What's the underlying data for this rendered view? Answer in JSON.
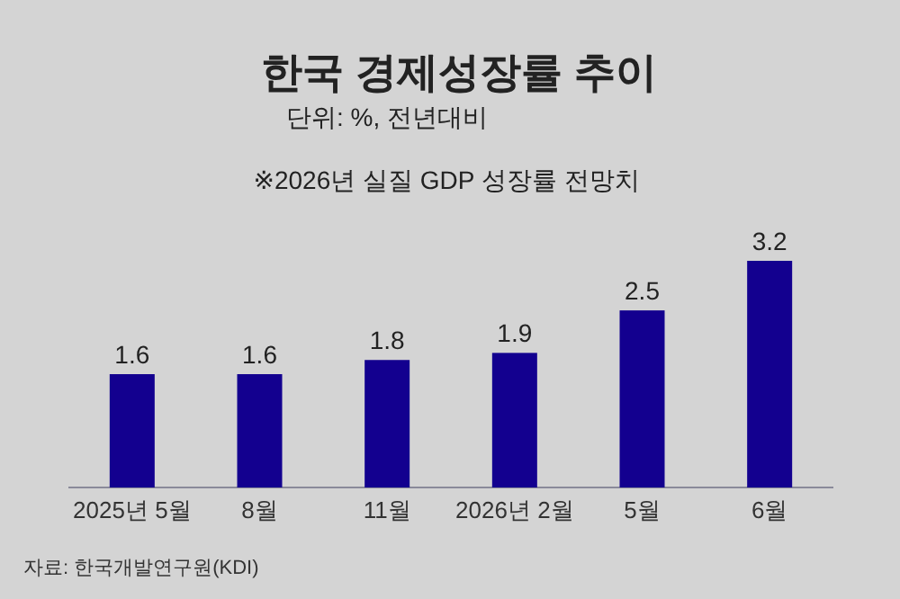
{
  "chart_data": {
    "type": "bar",
    "title": "한국 경제성장률 추이",
    "subtitle": "단위: %, 전년대비",
    "annotations": [
      "※2026년 실질 GDP 성장률 전망치",
      "자료: 한국개발연구원(KDI)"
    ],
    "categories": [
      "2025년 5월",
      "8월",
      "11월",
      "2026년 2월",
      "5월",
      "6월"
    ],
    "values": [
      1.6,
      1.6,
      1.8,
      1.9,
      2.5,
      3.2
    ],
    "color": "#13008f",
    "data_labels": true
  }
}
